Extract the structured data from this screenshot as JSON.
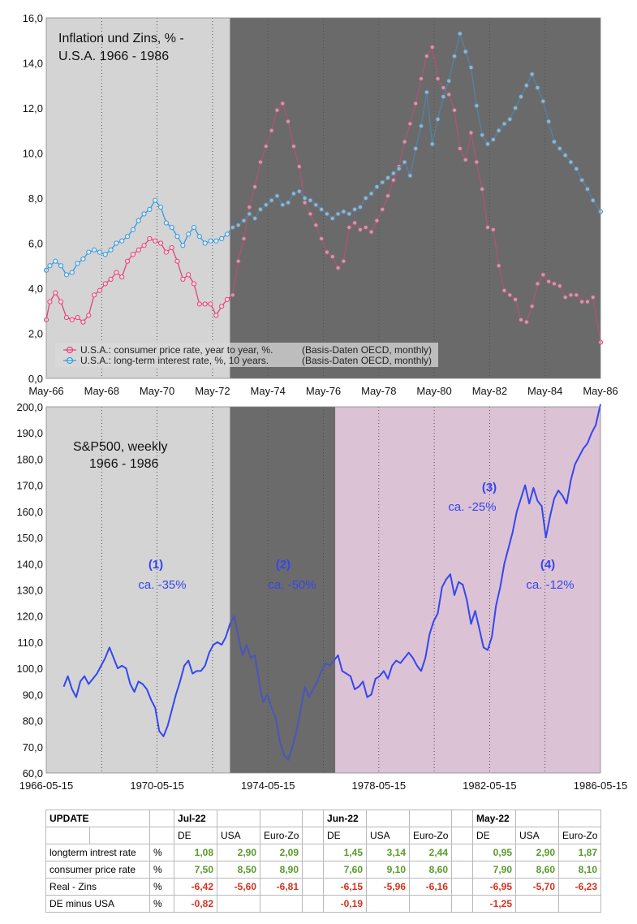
{
  "chart_data": [
    {
      "type": "line",
      "title": "Inflation und Zins, %  -",
      "subtitle": "U.S.A.   1966 - 1986",
      "xlabel": "",
      "ylabel": "",
      "x_ticks": [
        "May-66",
        "May-68",
        "May-70",
        "May-72",
        "May-74",
        "May-76",
        "May-78",
        "May-80",
        "May-82",
        "May-84",
        "May-86"
      ],
      "y_ticks": [
        "0,0",
        "2,0",
        "4,0",
        "6,0",
        "8,0",
        "10,0",
        "12,0",
        "14,0",
        "16,0"
      ],
      "xlim": [
        1966.37,
        1986.37
      ],
      "ylim": [
        0,
        16
      ],
      "x_decimal_years": true,
      "background_bands": [
        {
          "from": 1966.37,
          "to": 1973.0,
          "color": "#d4d4d4"
        },
        {
          "from": 1973.0,
          "to": 1986.37,
          "color": "#6b6b6b"
        }
      ],
      "legend_position": "bottom-left",
      "series": [
        {
          "name": "U.S.A.: consumer price rate, year to year, %.",
          "note": "(Basis-Daten OECD, monthly)",
          "color": "#e0457b",
          "x": [
            1966.37,
            1966.5,
            1966.7,
            1966.9,
            1967.1,
            1967.3,
            1967.5,
            1967.7,
            1967.9,
            1968.1,
            1968.3,
            1968.5,
            1968.7,
            1968.9,
            1969.1,
            1969.3,
            1969.5,
            1969.7,
            1969.9,
            1970.1,
            1970.3,
            1970.5,
            1970.7,
            1970.9,
            1971.1,
            1971.3,
            1971.5,
            1971.7,
            1971.9,
            1972.1,
            1972.3,
            1972.5,
            1972.7,
            1972.9,
            1973.1,
            1973.3,
            1973.5,
            1973.7,
            1973.9,
            1974.1,
            1974.3,
            1974.5,
            1974.7,
            1974.9,
            1975.1,
            1975.3,
            1975.5,
            1975.7,
            1975.9,
            1976.1,
            1976.3,
            1976.5,
            1976.7,
            1976.9,
            1977.1,
            1977.3,
            1977.5,
            1977.7,
            1977.9,
            1978.1,
            1978.3,
            1978.5,
            1978.7,
            1978.9,
            1979.1,
            1979.3,
            1979.5,
            1979.7,
            1979.9,
            1980.1,
            1980.3,
            1980.5,
            1980.7,
            1980.9,
            1981.1,
            1981.3,
            1981.5,
            1981.7,
            1981.9,
            1982.1,
            1982.3,
            1982.5,
            1982.7,
            1982.9,
            1983.1,
            1983.3,
            1983.5,
            1983.7,
            1983.9,
            1984.1,
            1984.3,
            1984.5,
            1984.7,
            1984.9,
            1985.1,
            1985.3,
            1985.5,
            1985.7,
            1985.9,
            1986.1,
            1986.37
          ],
          "values": [
            2.6,
            3.4,
            3.8,
            3.4,
            2.7,
            2.6,
            2.7,
            2.5,
            2.8,
            3.7,
            3.9,
            4.2,
            4.4,
            4.7,
            4.5,
            5.2,
            5.5,
            5.7,
            5.9,
            6.2,
            6.1,
            6.0,
            5.6,
            5.8,
            5.2,
            4.4,
            4.6,
            4.2,
            3.3,
            3.3,
            3.3,
            2.8,
            3.2,
            3.5,
            3.7,
            5.2,
            6.2,
            7.6,
            8.5,
            9.6,
            10.3,
            11.0,
            11.9,
            12.2,
            11.4,
            10.3,
            9.4,
            7.8,
            7.3,
            6.8,
            6.2,
            5.6,
            5.4,
            4.9,
            5.2,
            6.7,
            6.9,
            6.6,
            6.7,
            6.5,
            7.0,
            7.5,
            8.1,
            8.8,
            9.4,
            10.5,
            11.3,
            12.2,
            13.3,
            14.3,
            14.7,
            13.3,
            12.9,
            12.6,
            11.9,
            10.2,
            9.7,
            10.9,
            9.6,
            8.4,
            6.7,
            6.6,
            5.0,
            3.9,
            3.7,
            3.5,
            2.6,
            2.5,
            3.2,
            4.2,
            4.6,
            4.3,
            4.2,
            4.1,
            3.6,
            3.7,
            3.7,
            3.4,
            3.4,
            3.6,
            1.6
          ]
        },
        {
          "name": "U.S.A.: long-term interest rate, %, 10 years.",
          "note": "(Basis-Daten OECD, monthly)",
          "color": "#3b99d9",
          "x": [
            1966.37,
            1966.5,
            1966.7,
            1966.9,
            1967.1,
            1967.3,
            1967.5,
            1967.7,
            1967.9,
            1968.1,
            1968.3,
            1968.5,
            1968.7,
            1968.9,
            1969.1,
            1969.3,
            1969.5,
            1969.7,
            1969.9,
            1970.1,
            1970.3,
            1970.5,
            1970.7,
            1970.9,
            1971.1,
            1971.3,
            1971.5,
            1971.7,
            1971.9,
            1972.1,
            1972.3,
            1972.5,
            1972.7,
            1972.9,
            1973.1,
            1973.3,
            1973.5,
            1973.7,
            1973.9,
            1974.1,
            1974.3,
            1974.5,
            1974.7,
            1974.9,
            1975.1,
            1975.3,
            1975.5,
            1975.7,
            1975.9,
            1976.1,
            1976.3,
            1976.5,
            1976.7,
            1976.9,
            1977.1,
            1977.3,
            1977.5,
            1977.7,
            1977.9,
            1978.1,
            1978.3,
            1978.5,
            1978.7,
            1978.9,
            1979.1,
            1979.3,
            1979.5,
            1979.7,
            1979.9,
            1980.1,
            1980.3,
            1980.5,
            1980.7,
            1980.9,
            1981.1,
            1981.3,
            1981.5,
            1981.7,
            1981.9,
            1982.1,
            1982.3,
            1982.5,
            1982.7,
            1982.9,
            1983.1,
            1983.3,
            1983.5,
            1983.7,
            1983.9,
            1984.1,
            1984.3,
            1984.5,
            1984.7,
            1984.9,
            1985.1,
            1985.3,
            1985.5,
            1985.7,
            1985.9,
            1986.1,
            1986.37
          ],
          "values": [
            4.8,
            5.0,
            5.2,
            5.0,
            4.6,
            4.7,
            5.1,
            5.3,
            5.6,
            5.7,
            5.6,
            5.5,
            5.7,
            6.0,
            6.1,
            6.3,
            6.6,
            7.0,
            7.3,
            7.5,
            7.9,
            7.6,
            6.9,
            6.7,
            6.3,
            5.9,
            6.4,
            6.7,
            6.3,
            6.0,
            6.1,
            6.1,
            6.2,
            6.4,
            6.7,
            6.8,
            7.0,
            7.3,
            7.1,
            7.5,
            7.7,
            7.9,
            8.1,
            7.7,
            7.8,
            8.2,
            8.3,
            8.0,
            7.9,
            7.7,
            7.5,
            7.3,
            7.1,
            7.3,
            7.4,
            7.3,
            7.5,
            7.6,
            8.0,
            8.2,
            8.5,
            8.7,
            8.9,
            9.1,
            9.3,
            9.6,
            9.0,
            10.2,
            11.2,
            12.7,
            10.4,
            11.5,
            12.5,
            13.2,
            14.3,
            15.3,
            14.5,
            13.8,
            12.1,
            10.8,
            10.4,
            10.6,
            11.0,
            11.3,
            11.5,
            12.0,
            12.5,
            13.0,
            13.5,
            12.9,
            12.3,
            11.4,
            10.5,
            10.2,
            9.9,
            9.6,
            9.3,
            8.8,
            8.4,
            7.9,
            7.4
          ]
        }
      ],
      "grid": "vertical dotted lines at x ticks"
    },
    {
      "type": "line",
      "title": "S&P500, weekly",
      "subtitle": "1966 - 1986",
      "xlabel": "",
      "ylabel": "",
      "x_ticks": [
        "1966-05-15",
        "1970-05-15",
        "1974-05-15",
        "1978-05-15",
        "1982-05-15",
        "1986-05-15"
      ],
      "y_ticks": [
        "60,0",
        "70,0",
        "80,0",
        "90,0",
        "100,0",
        "110,0",
        "120,0",
        "130,0",
        "140,0",
        "150,0",
        "160,0",
        "170,0",
        "180,0",
        "190,0",
        "200,0"
      ],
      "xlim": [
        1966.37,
        1986.37
      ],
      "ylim": [
        60,
        200
      ],
      "x_decimal_years": true,
      "background_bands": [
        {
          "from": 1966.37,
          "to": 1973.0,
          "color": "#d4d4d4"
        },
        {
          "from": 1973.0,
          "to": 1976.8,
          "color": "#6b6b6b"
        },
        {
          "from": 1976.8,
          "to": 1986.37,
          "color": "#dcc2d5"
        }
      ],
      "series": [
        {
          "color": "#3347f0",
          "x": [
            1967.0,
            1967.15,
            1967.3,
            1967.45,
            1967.6,
            1967.75,
            1967.9,
            1968.05,
            1968.2,
            1968.35,
            1968.5,
            1968.65,
            1968.8,
            1968.95,
            1969.1,
            1969.25,
            1969.4,
            1969.55,
            1969.7,
            1969.85,
            1970.0,
            1970.15,
            1970.3,
            1970.45,
            1970.6,
            1970.75,
            1970.9,
            1971.05,
            1971.2,
            1971.35,
            1971.5,
            1971.65,
            1971.8,
            1971.95,
            1972.1,
            1972.25,
            1972.4,
            1972.55,
            1972.7,
            1972.85,
            1973.0,
            1973.15,
            1973.3,
            1973.45,
            1973.6,
            1973.75,
            1973.9,
            1974.05,
            1974.2,
            1974.35,
            1974.5,
            1974.65,
            1974.8,
            1974.95,
            1975.1,
            1975.25,
            1975.4,
            1975.55,
            1975.7,
            1975.85,
            1976.0,
            1976.15,
            1976.3,
            1976.45,
            1976.6,
            1976.75,
            1976.9,
            1977.05,
            1977.2,
            1977.35,
            1977.5,
            1977.65,
            1977.8,
            1977.95,
            1978.1,
            1978.25,
            1978.4,
            1978.55,
            1978.7,
            1978.85,
            1979.0,
            1979.15,
            1979.3,
            1979.45,
            1979.6,
            1979.75,
            1979.9,
            1980.05,
            1980.2,
            1980.35,
            1980.5,
            1980.65,
            1980.8,
            1980.95,
            1981.1,
            1981.25,
            1981.4,
            1981.55,
            1981.7,
            1981.85,
            1982.0,
            1982.15,
            1982.3,
            1982.45,
            1982.6,
            1982.75,
            1982.9,
            1983.05,
            1983.2,
            1983.35,
            1983.5,
            1983.65,
            1983.8,
            1983.95,
            1984.1,
            1984.25,
            1984.4,
            1984.55,
            1984.7,
            1984.85,
            1985.0,
            1985.15,
            1985.3,
            1985.45,
            1985.6,
            1985.75,
            1985.9,
            1986.05,
            1986.2,
            1986.37
          ],
          "values": [
            93,
            97,
            92,
            89,
            95,
            97,
            94,
            96,
            98,
            101,
            104,
            108,
            104,
            100,
            101,
            100,
            94,
            91,
            95,
            94,
            92,
            88,
            85,
            76,
            74,
            78,
            84,
            90,
            95,
            101,
            103,
            98,
            99,
            99,
            101,
            106,
            109,
            110,
            109,
            112,
            117,
            120,
            112,
            105,
            109,
            104,
            105,
            95,
            87,
            90,
            85,
            81,
            72,
            67,
            65,
            70,
            76,
            84,
            93,
            89,
            92,
            95,
            99,
            102,
            101,
            103,
            105,
            99,
            98,
            97,
            92,
            93,
            95,
            89,
            90,
            96,
            97,
            99,
            96,
            101,
            103,
            102,
            104,
            106,
            104,
            101,
            99,
            104,
            113,
            118,
            121,
            131,
            134,
            136,
            128,
            133,
            132,
            126,
            117,
            122,
            115,
            108,
            107,
            112,
            124,
            131,
            140,
            146,
            152,
            160,
            165,
            170,
            163,
            169,
            164,
            162,
            150,
            158,
            165,
            168,
            166,
            163,
            172,
            178,
            181,
            184,
            186,
            190,
            193,
            201
          ]
        }
      ],
      "annotations": [
        {
          "label": "(1)",
          "text": "ca. -35%",
          "color": "#3347f0"
        },
        {
          "label": "(2)",
          "text": "ca. -50%",
          "color": "#3347f0"
        },
        {
          "label": "(3)",
          "text": "ca. -25%",
          "color": "#3347f0"
        },
        {
          "label": "(4)",
          "text": "ca. -12%",
          "color": "#3347f0"
        }
      ],
      "grid": "vertical dotted lines"
    }
  ],
  "table": {
    "header1": {
      "update": "UPDATE",
      "groups": [
        "Jul-22",
        "Jun-22",
        "May-22"
      ]
    },
    "header2": [
      "DE",
      "USA",
      "Euro-Zo"
    ],
    "rows": [
      {
        "label": "longterm intrest rate",
        "unit": "%",
        "cells": [
          "1,08",
          "2,90",
          "2,09",
          "1,45",
          "3,14",
          "2,44",
          "0,95",
          "2,90",
          "1,87"
        ],
        "tone": "pos"
      },
      {
        "label": "consumer price rate",
        "unit": "%",
        "cells": [
          "7,50",
          "8,50",
          "8,90",
          "7,60",
          "9,10",
          "8,60",
          "7,90",
          "8,60",
          "8,10"
        ],
        "tone": "pos"
      },
      {
        "label": "Real - Zins",
        "unit": "%",
        "cells": [
          "-6,42",
          "-5,60",
          "-6,81",
          "-6,15",
          "-5,96",
          "-6,16",
          "-6,95",
          "-5,70",
          "-6,23"
        ],
        "tone": "neg"
      },
      {
        "label": "DE minus  USA",
        "unit": "%",
        "cells": [
          "-0,82",
          "",
          "",
          "-0,19",
          "",
          "",
          "-1,25",
          "",
          ""
        ],
        "tone": "neg"
      }
    ]
  }
}
